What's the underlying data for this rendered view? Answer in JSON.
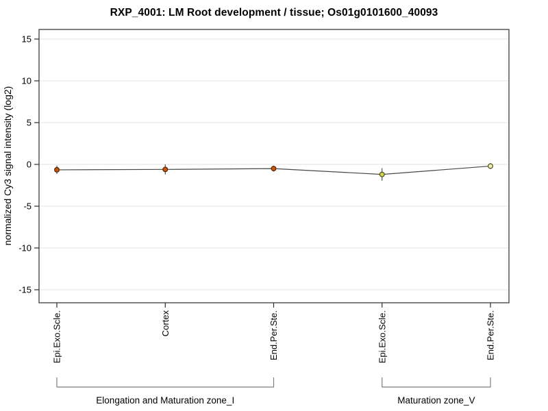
{
  "page": {
    "background": "#ffffff"
  },
  "chart_data": {
    "type": "line",
    "title": "RXP_4001: LM Root development / tissue; Os01g0101600_40093",
    "ylabel": "normalized Cy3 signal intensity (log2)",
    "xlabel": "",
    "ylim": [
      -16.5,
      16.2
    ],
    "yticks": [
      15,
      10,
      5,
      0,
      -5,
      -10,
      -15
    ],
    "grid": true,
    "legend_position": "none",
    "categories": [
      "Epi.Exo.Scle.",
      "Cortex",
      "End.Per.Ste.",
      "Epi.Exo.Scle.",
      "End.Per.Ste."
    ],
    "groups": [
      {
        "label": "Elongation and Maturation zone_I",
        "start_index": 0,
        "end_index": 2
      },
      {
        "label": "Maturation zone_V",
        "start_index": 3,
        "end_index": 4
      }
    ],
    "series": [
      {
        "name": "normalized Cy3 signal intensity (log2)",
        "values": [
          -0.65,
          -0.6,
          -0.5,
          -1.2,
          -0.2
        ],
        "error_bars": [
          0.5,
          0.6,
          0.35,
          0.75,
          0.35
        ],
        "point_fill_colors": [
          "#c85504",
          "#c85504",
          "#c85504",
          "#d5d44d",
          "#efeeb0"
        ],
        "point_border_colors": [
          "#57230b",
          "#57230b",
          "#57230b",
          "#4c4c22",
          "#4c4c22"
        ],
        "line_color": "#474747"
      }
    ],
    "colors": {
      "grid": "#e3e3e3",
      "frame": "#4a4a4a",
      "tick": "#2b2b2b",
      "error_bar": "#303030",
      "bracket": "#7d7d7d",
      "text": "#000000"
    }
  }
}
